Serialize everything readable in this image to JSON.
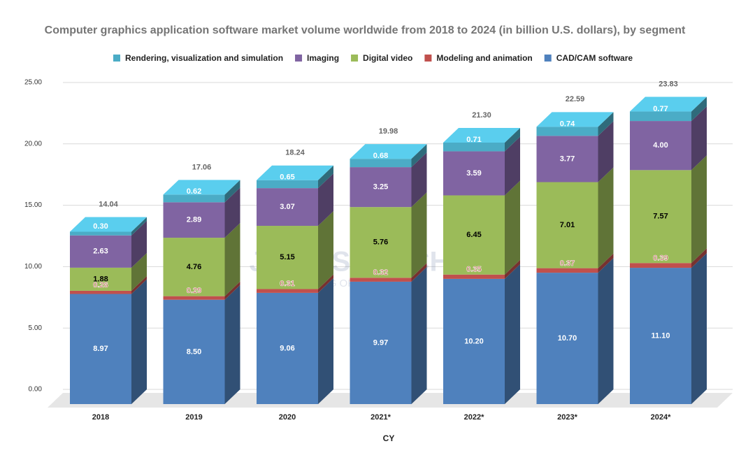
{
  "chart_data": {
    "type": "stacked-bar-3d",
    "title": "Computer graphics application software market volume worldwide from 2018 to 2024 (in billion U.S. dollars), by segment",
    "x_label": "CY",
    "categories": [
      "2018",
      "2019",
      "2020",
      "2021*",
      "2022*",
      "2023*",
      "2024*"
    ],
    "series": [
      {
        "name": "CAD/CAM software",
        "color": "#4f81bd",
        "label_color": "#ffffff",
        "values": [
          8.97,
          8.5,
          9.06,
          9.97,
          10.2,
          10.7,
          11.1
        ],
        "value_labels": [
          "8.97",
          "8.50",
          "9.06",
          "9.97",
          "10.20",
          "10.70",
          "11.10"
        ]
      },
      {
        "name": "Modeling and animation",
        "color": "#c0504d",
        "label_color": "#c0504d",
        "values": [
          0.26,
          0.29,
          0.31,
          0.32,
          0.35,
          0.37,
          0.39
        ],
        "value_labels": [
          "0.26",
          "0.29",
          "0.31",
          "0.32",
          "0.35",
          "0.37",
          "0.39"
        ]
      },
      {
        "name": "Digital video",
        "color": "#9bbb59",
        "label_color": "#000000",
        "values": [
          1.88,
          4.76,
          5.15,
          5.76,
          6.45,
          7.01,
          7.57
        ],
        "value_labels": [
          "1.88",
          "4.76",
          "5.15",
          "5.76",
          "6.45",
          "7.01",
          "7.57"
        ]
      },
      {
        "name": "Imaging",
        "color": "#8064a2",
        "label_color": "#ffffff",
        "values": [
          2.63,
          2.89,
          3.07,
          3.25,
          3.59,
          3.77,
          4.0
        ],
        "value_labels": [
          "2.63",
          "2.89",
          "3.07",
          "3.25",
          "3.59",
          "3.77",
          "4.00"
        ]
      },
      {
        "name": "Rendering, visualization and simulation",
        "color": "#4bacc6",
        "label_color": "#ffffff",
        "values": [
          0.3,
          0.62,
          0.65,
          0.68,
          0.71,
          0.74,
          0.77
        ],
        "value_labels": [
          "0.30",
          "0.62",
          "0.65",
          "0.68",
          "0.71",
          "0.74",
          "0.77"
        ]
      }
    ],
    "totals": [
      14.04,
      17.06,
      18.24,
      19.98,
      21.3,
      22.59,
      23.83
    ],
    "total_labels": [
      "14.04",
      "17.06",
      "18.24",
      "19.98",
      "21.30",
      "22.59",
      "23.83"
    ],
    "ylim": [
      0,
      25
    ],
    "yticks": [
      {
        "value": 0,
        "label": "0.00"
      },
      {
        "value": 5,
        "label": "5.00"
      },
      {
        "value": 10,
        "label": "10.00"
      },
      {
        "value": 15,
        "label": "15.00"
      },
      {
        "value": 20,
        "label": "20.00"
      },
      {
        "value": 25,
        "label": "25.00"
      }
    ],
    "grid": true,
    "legend": "top"
  },
  "watermark": {
    "title": "JR RESEARCH",
    "subtitle": "UNLOCKING OPPORTUNITIES"
  }
}
